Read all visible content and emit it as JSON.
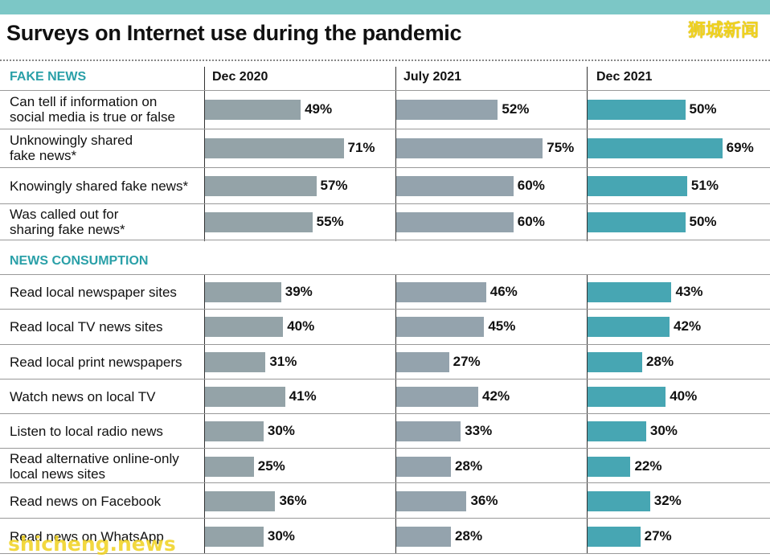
{
  "title": "Surveys on Internet use during the pandemic",
  "brand": "狮城新闻",
  "watermark": "shicheng.news",
  "colors": {
    "topbar": "#7cc7c6",
    "section": "#2aa0a8",
    "gray_bar": "#94a3a8",
    "teal_bar": "#47a6b3"
  },
  "chart_data": {
    "type": "bar",
    "title": "Surveys on Internet use during the pandemic",
    "series": [
      {
        "name": "Dec 2020"
      },
      {
        "name": "July 2021"
      },
      {
        "name": "Dec 2021"
      }
    ],
    "value_unit": "%",
    "xlim": [
      0,
      100
    ],
    "sections": [
      {
        "name": "FAKE NEWS",
        "rows": [
          {
            "label": "Can tell if information on\nsocial media is true or false",
            "values": [
              49,
              52,
              50
            ]
          },
          {
            "label": "Unknowingly shared\nfake news*",
            "values": [
              71,
              75,
              69
            ]
          },
          {
            "label": "Knowingly shared fake news*",
            "values": [
              57,
              60,
              51
            ]
          },
          {
            "label": "Was called out for\nsharing fake news*",
            "values": [
              55,
              60,
              50
            ]
          }
        ]
      },
      {
        "name": "NEWS CONSUMPTION",
        "rows": [
          {
            "label": "Read local newspaper sites",
            "values": [
              39,
              46,
              43
            ]
          },
          {
            "label": "Read local TV news sites",
            "values": [
              40,
              45,
              42
            ]
          },
          {
            "label": "Read local print newspapers",
            "values": [
              31,
              27,
              28
            ]
          },
          {
            "label": "Watch news on local TV",
            "values": [
              41,
              42,
              40
            ]
          },
          {
            "label": "Listen to local radio news",
            "values": [
              30,
              33,
              30
            ]
          },
          {
            "label": "Read alternative online-only\nlocal news sites",
            "values": [
              25,
              28,
              22
            ]
          },
          {
            "label": "Read news on Facebook",
            "values": [
              36,
              36,
              32
            ]
          },
          {
            "label": "Read news on WhatsApp",
            "values": [
              30,
              28,
              27
            ]
          }
        ]
      }
    ]
  }
}
